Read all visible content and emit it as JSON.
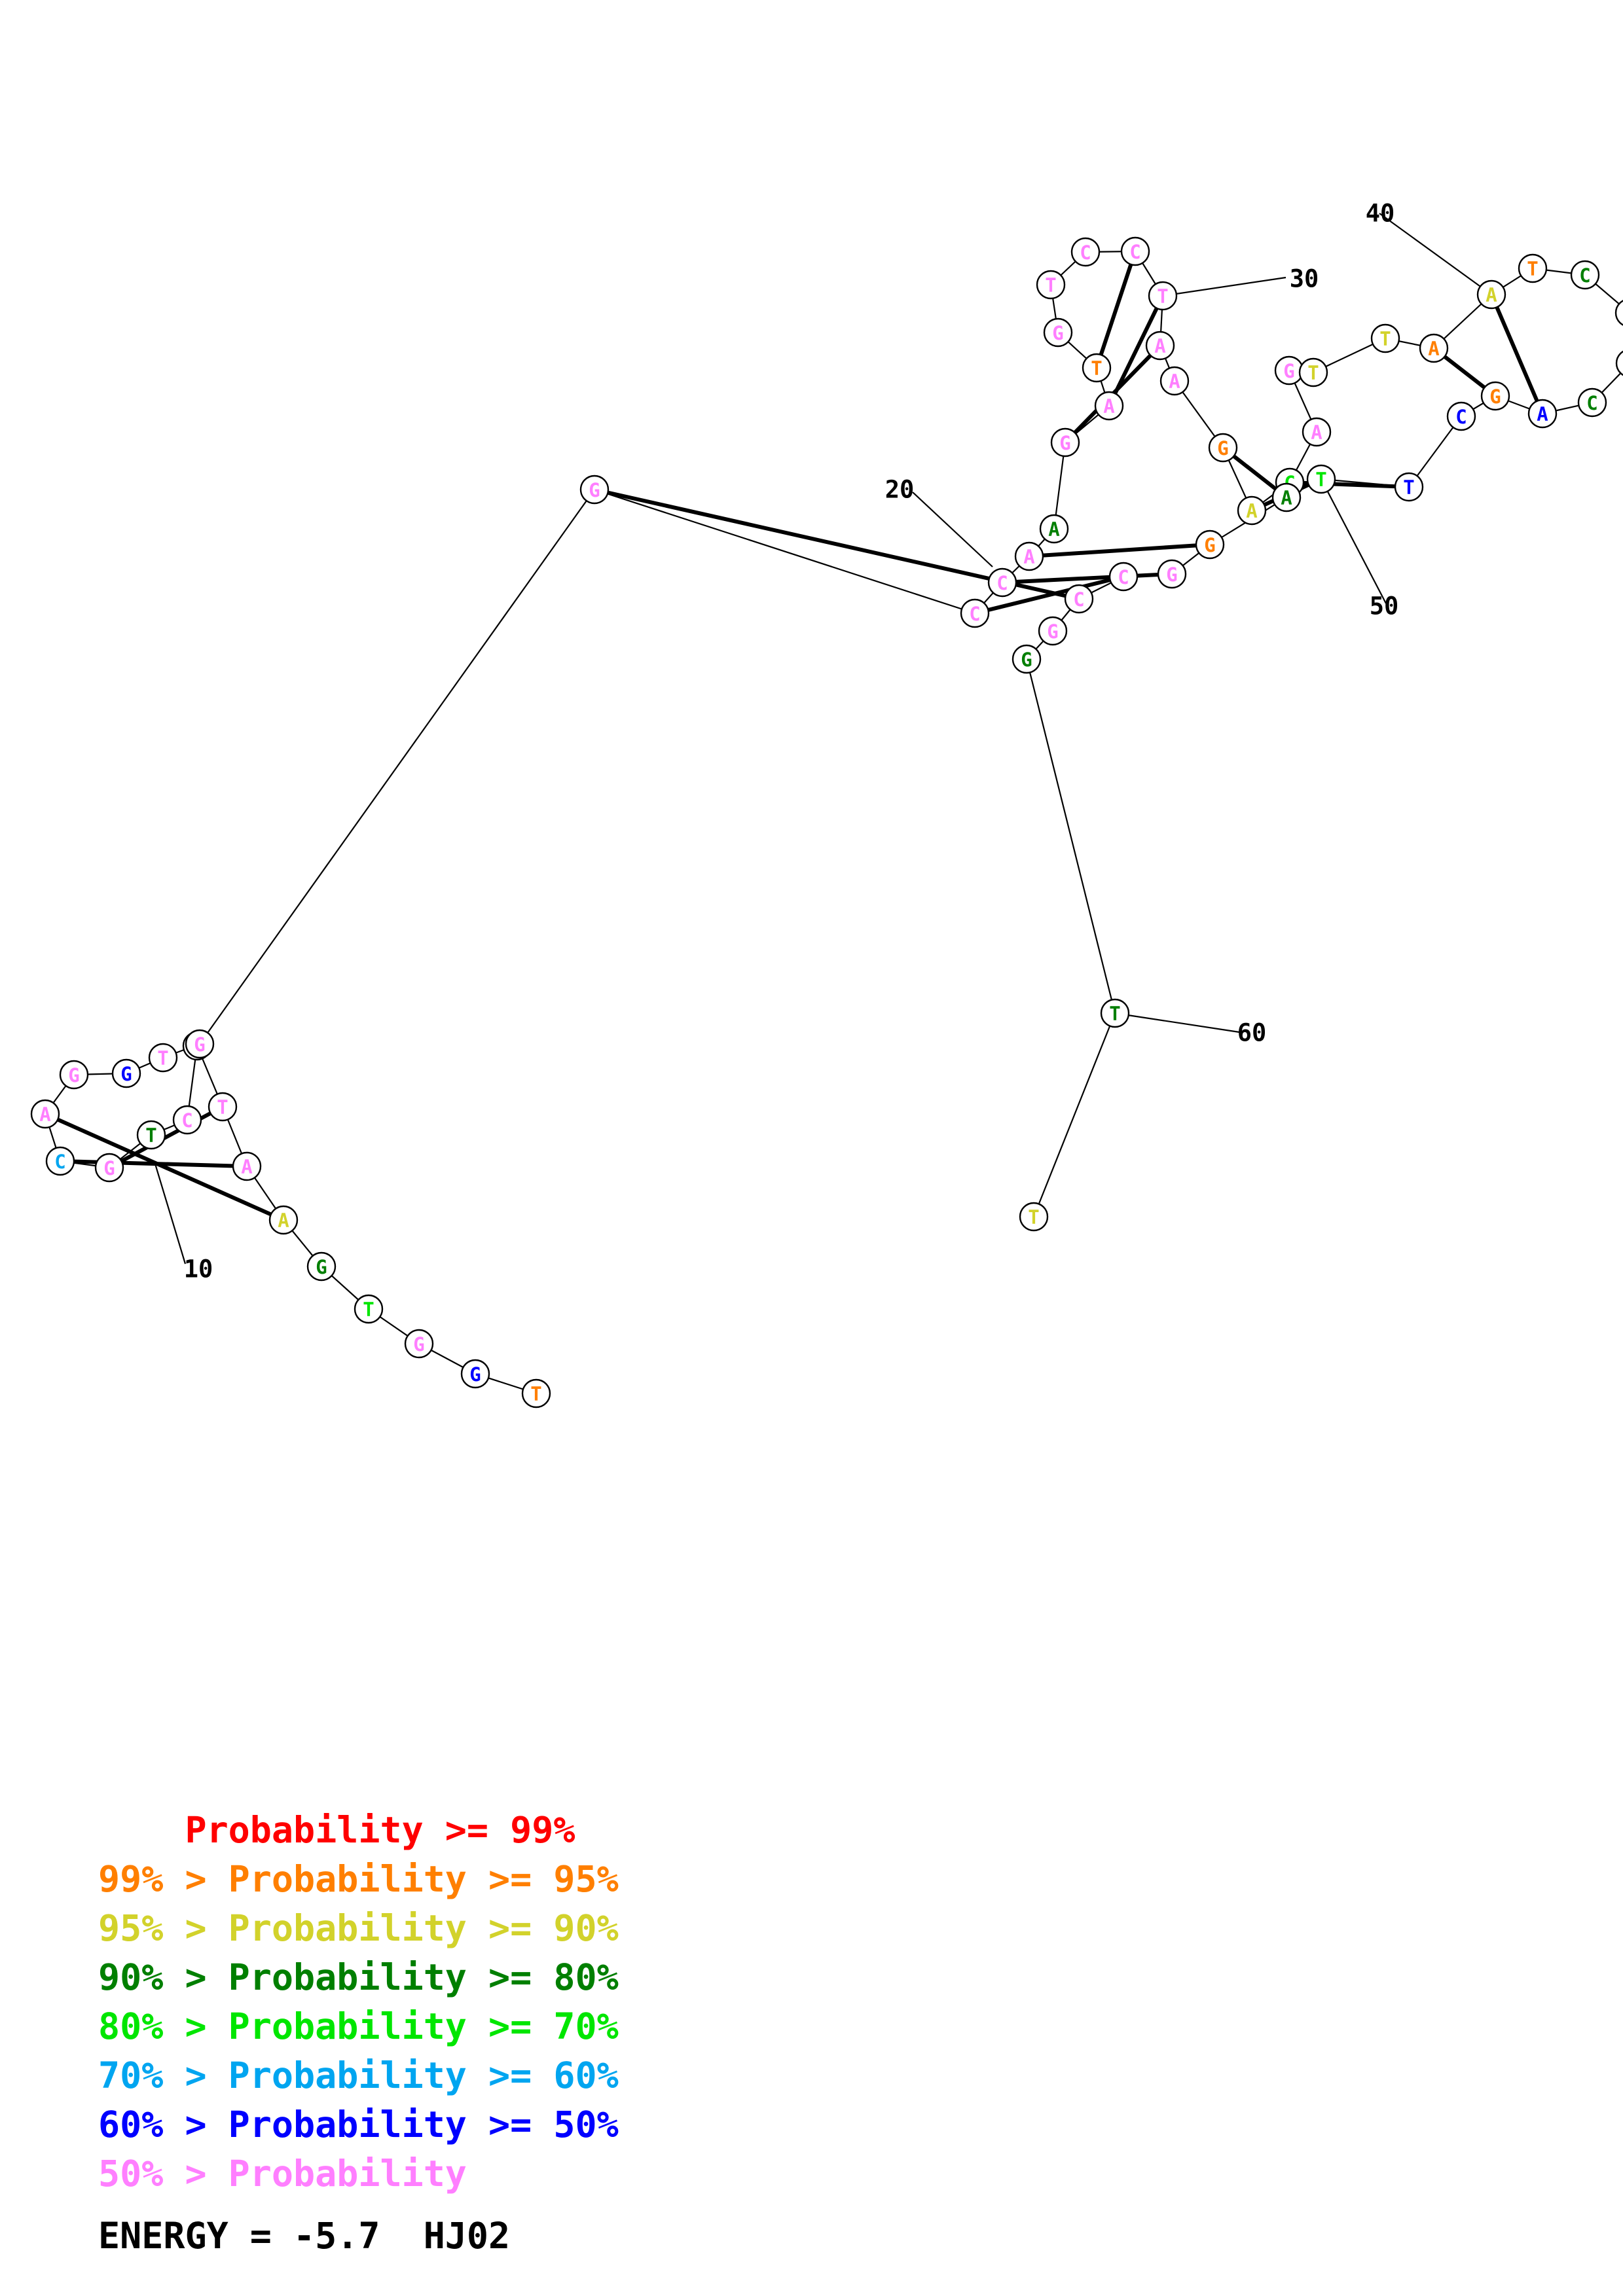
{
  "colors": {
    "p99": "#ff0000",
    "p95": "#ff7f00",
    "p90": "#d2d22b",
    "p80": "#007f00",
    "p70": "#00e600",
    "p60": "#00a5f0",
    "p50": "#0000ff",
    "plow": "#ff7fff"
  },
  "structure": {
    "sequence": [
      "T",
      "G",
      "G",
      "T",
      "G",
      "A",
      "A",
      "T",
      "C",
      "C",
      "T",
      "G",
      "C",
      "A",
      "G",
      "G",
      "T",
      "G",
      "G",
      "C",
      "C",
      "A",
      "A",
      "G",
      "A",
      "T",
      "G",
      "T",
      "C",
      "C",
      "T",
      "A",
      "A",
      "G",
      "A",
      "C",
      "A",
      "G",
      "T",
      "T",
      "A",
      "A",
      "T",
      "C",
      "G",
      "T",
      "C",
      "A",
      "G",
      "C",
      "T",
      "T",
      "A",
      "G",
      "G",
      "C",
      "C",
      "G",
      "G",
      "T",
      "T"
    ],
    "prob_class": [
      "p95",
      "p50",
      "plow",
      "p70",
      "p80",
      "p90",
      "plow",
      "plow",
      "plow",
      "plow",
      "p80",
      "plow",
      "p60",
      "plow",
      "plow",
      "p50",
      "plow",
      "plow",
      "plow",
      "plow",
      "plow",
      "plow",
      "p80",
      "plow",
      "plow",
      "p95",
      "plow",
      "plow",
      "plow",
      "plow",
      "plow",
      "plow",
      "plow",
      "p95",
      "p90",
      "p70",
      "plow",
      "plow",
      "p90",
      "p90",
      "p95",
      "p90",
      "p95",
      "p80",
      "p80",
      "plow",
      "p80",
      "p50",
      "p95",
      "p50",
      "p50",
      "p70",
      "p80",
      "p95",
      "plow",
      "plow",
      "plow",
      "plow",
      "p80",
      "p80",
      "p90"
    ],
    "pairs": [
      [
        8,
        12
      ],
      [
        7,
        13
      ],
      [
        6,
        14
      ],
      [
        19,
        57
      ],
      [
        20,
        56
      ],
      [
        21,
        55
      ],
      [
        22,
        54
      ],
      [
        24,
        32
      ],
      [
        25,
        31
      ],
      [
        26,
        30
      ],
      [
        34,
        53
      ],
      [
        35,
        52
      ],
      [
        36,
        51
      ],
      [
        41,
        49
      ],
      [
        42,
        48
      ]
    ],
    "position_labels": [
      {
        "index": 10,
        "text": "10"
      },
      {
        "index": 20,
        "text": "20"
      },
      {
        "index": 30,
        "text": "30"
      },
      {
        "index": 40,
        "text": "40"
      },
      {
        "index": 50,
        "text": "50"
      },
      {
        "index": 60,
        "text": "60"
      }
    ]
  },
  "legend": {
    "rows": [
      {
        "prefix": "    ",
        "text": "Probability >= 99%",
        "color": "p99"
      },
      {
        "prefix": "",
        "text": "99% > Probability >= 95%",
        "color": "p95"
      },
      {
        "prefix": "",
        "text": "95% > Probability >= 90%",
        "color": "p90"
      },
      {
        "prefix": "",
        "text": "90% > Probability >= 80%",
        "color": "p80"
      },
      {
        "prefix": "",
        "text": "80% > Probability >= 70%",
        "color": "p70"
      },
      {
        "prefix": "",
        "text": "70% > Probability >= 60%",
        "color": "p60"
      },
      {
        "prefix": "",
        "text": "60% > Probability >= 50%",
        "color": "p50"
      },
      {
        "prefix": "",
        "text": "50% > Probability",
        "color": "plow"
      }
    ],
    "energy": "ENERGY = -5.7  HJ02"
  }
}
